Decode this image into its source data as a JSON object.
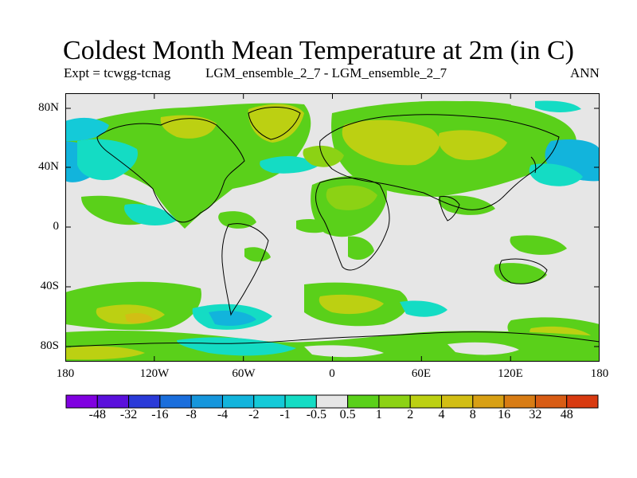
{
  "title": "Coldest Month Mean Temperature at 2m (in C)",
  "subtitle_left": "Expt = tcwgg-tcnag",
  "subtitle_center": "LGM_ensemble_2_7 - LGM_ensemble_2_7",
  "subtitle_right": "ANN",
  "lat_labels": [
    "80N",
    "40N",
    "0",
    "40S",
    "80S"
  ],
  "lon_labels": [
    "180",
    "120W",
    "60W",
    "0",
    "60E",
    "120E",
    "180"
  ],
  "legend": {
    "colors": [
      "#8000e0",
      "#5a10dc",
      "#2a3ad8",
      "#1a6edc",
      "#1696dc",
      "#12b4dc",
      "#14cad8",
      "#14dcc4",
      "#e6e6e6",
      "#5ad01a",
      "#8cd214",
      "#bcd012",
      "#d2be14",
      "#d8a014",
      "#d87c14",
      "#d85c14",
      "#d83a10"
    ],
    "labels": [
      "-48",
      "-32",
      "-16",
      "-8",
      "-4",
      "-2",
      "-1",
      "-0.5",
      "0.5",
      "1",
      "2",
      "4",
      "8",
      "16",
      "32",
      "48"
    ]
  },
  "map_colors": {
    "background": "#e6e6e6",
    "green": "#5ad01a",
    "yellowgreen": "#8cd214",
    "olive": "#bcd012",
    "gold": "#d2be14",
    "cyan": "#14dcc4",
    "lightblue": "#14cad8",
    "blue": "#12b4dc",
    "coast": "#000000"
  }
}
